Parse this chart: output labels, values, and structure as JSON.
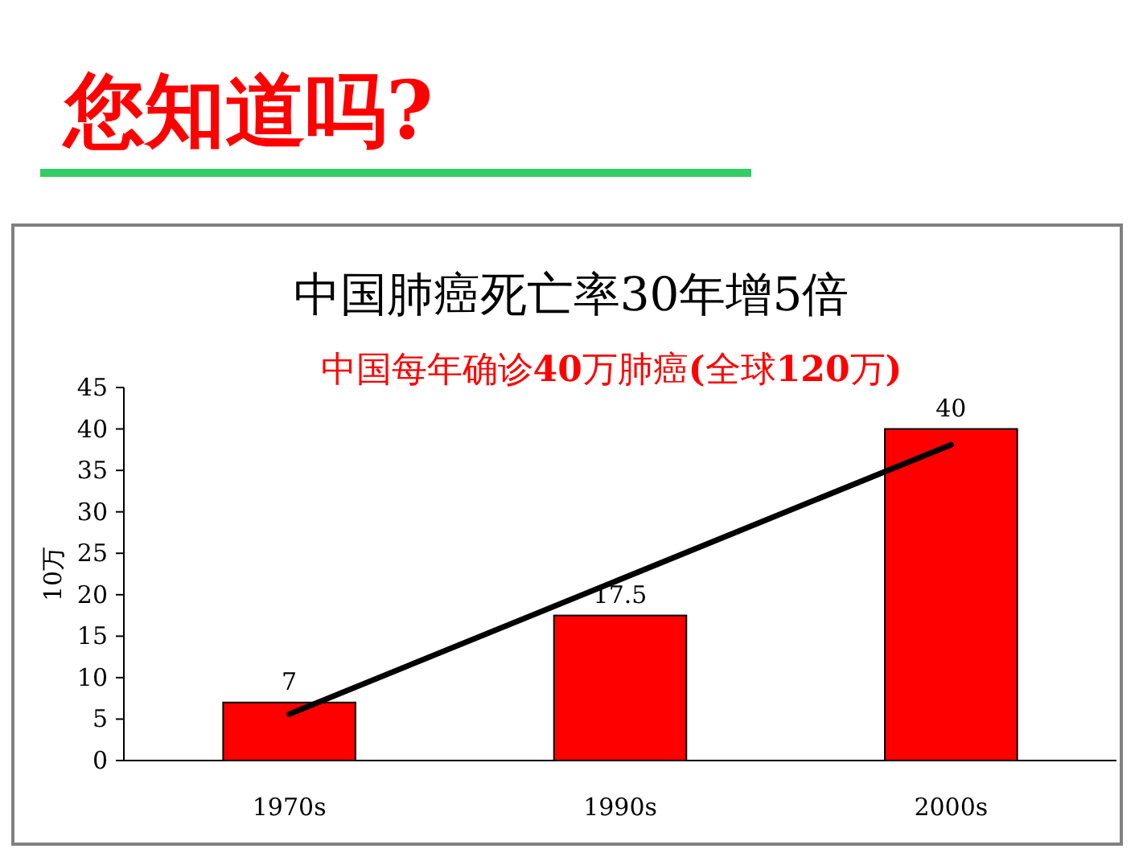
{
  "chart_data": {
    "type": "bar",
    "title": "中国肺癌死亡率30年增5倍",
    "subtitle": "中国每年确诊**40**万肺癌**(**全球**120**万**)**",
    "annotations": [
      "您知道吗?"
    ],
    "ylabel": "10万",
    "categories": [
      "1970s",
      "1990s",
      "2000s"
    ],
    "series": [
      {
        "color": "#ff0000",
        "values": [
          7,
          17.5,
          40
        ],
        "value_labels": [
          "7",
          "17.5",
          "40"
        ]
      },
      {
        "type": "line",
        "color": "#000000",
        "x": [
          "1970s",
          "2000s"
        ],
        "values": [
          5.6,
          38.1
        ]
      }
    ],
    "ylim": [
      0,
      45
    ],
    "yticks": [
      0,
      5,
      10,
      15,
      20,
      25,
      30,
      35,
      40,
      45
    ],
    "grid": false
  }
}
